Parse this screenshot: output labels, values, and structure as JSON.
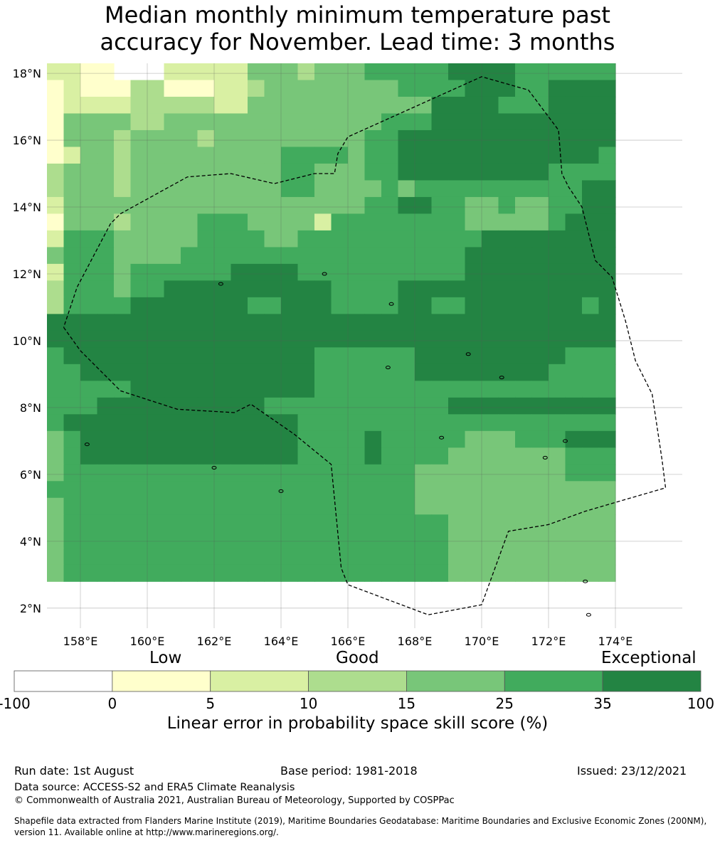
{
  "title_line1": "Median monthly minimum temperature past",
  "title_line2": "accuracy for November. Lead time: 3 months",
  "map": {
    "lon_range": [
      157,
      176
    ],
    "lat_range": [
      1.4,
      18.3
    ],
    "lon_ticks": [
      {
        "value": 158,
        "label": "158°E"
      },
      {
        "value": 160,
        "label": "160°E"
      },
      {
        "value": 162,
        "label": "162°E"
      },
      {
        "value": 164,
        "label": "164°E"
      },
      {
        "value": 166,
        "label": "166°E"
      },
      {
        "value": 168,
        "label": "168°E"
      },
      {
        "value": 170,
        "label": "170°E"
      },
      {
        "value": 172,
        "label": "172°E"
      },
      {
        "value": 174,
        "label": "174°E"
      }
    ],
    "lat_ticks": [
      {
        "value": 18,
        "label": "18°N"
      },
      {
        "value": 16,
        "label": "16°N"
      },
      {
        "value": 14,
        "label": "14°N"
      },
      {
        "value": 12,
        "label": "12°N"
      },
      {
        "value": 10,
        "label": "10°N"
      },
      {
        "value": 8,
        "label": "8°N"
      },
      {
        "value": 6,
        "label": "6°N"
      },
      {
        "value": 4,
        "label": "4°N"
      },
      {
        "value": 2,
        "label": "2°N"
      }
    ],
    "grid_lines": true,
    "eez_boundary": [
      [
        157.5,
        10.4
      ],
      [
        158.0,
        9.7
      ],
      [
        159.2,
        8.5
      ],
      [
        160.9,
        7.95
      ],
      [
        162.6,
        7.85
      ],
      [
        163.1,
        8.1
      ],
      [
        164.4,
        7.2
      ],
      [
        165.5,
        6.3
      ],
      [
        165.8,
        3.2
      ],
      [
        166.0,
        2.7
      ],
      [
        168.4,
        1.8
      ],
      [
        170.0,
        2.1
      ],
      [
        170.8,
        4.3
      ],
      [
        172.0,
        4.5
      ],
      [
        173.1,
        4.9
      ],
      [
        175.5,
        5.6
      ],
      [
        175.4,
        6.4
      ],
      [
        175.1,
        8.4
      ],
      [
        174.6,
        9.4
      ],
      [
        174.3,
        10.6
      ],
      [
        173.9,
        11.9
      ],
      [
        173.4,
        12.4
      ],
      [
        173.0,
        14.0
      ],
      [
        172.6,
        14.6
      ],
      [
        172.4,
        15.0
      ],
      [
        172.3,
        16.3
      ],
      [
        171.4,
        17.5
      ],
      [
        170.0,
        17.9
      ],
      [
        168.0,
        17.0
      ],
      [
        166.0,
        16.1
      ],
      [
        165.7,
        15.6
      ],
      [
        165.6,
        15.0
      ],
      [
        165.0,
        15.0
      ],
      [
        164.6,
        14.9
      ],
      [
        163.8,
        14.7
      ],
      [
        162.5,
        15.0
      ],
      [
        161.2,
        14.9
      ],
      [
        159.2,
        13.8
      ],
      [
        158.9,
        13.5
      ],
      [
        157.9,
        11.6
      ],
      [
        157.5,
        10.4
      ]
    ]
  },
  "chart_data": {
    "type": "heatmap",
    "title": "Median monthly minimum temperature past accuracy for November. Lead time: 3 months",
    "x_label": "",
    "y_label": "",
    "lon_start": 157.0,
    "lat_start": 18.3,
    "cell_size_deg": 0.5,
    "nodata_code": 0,
    "category_codes": {
      "0": "-100 to 0",
      "1": "0 to 5",
      "2": "5 to 10",
      "3": "10 to 15",
      "4": "15 to 25",
      "5": "25 to 35",
      "6": "35 to 100"
    },
    "grid_rows": [
      "2211000222224443444555556666555555",
      "1211133111223444444445555666556666",
      "1222233333224444444444466665556666",
      "1444433444444444444455566666666666",
      "1444344443444444444556666666666666",
      "1244344444444455554556666666666665",
      "3444344444444455444556666666665555",
      "3444344444444455444454555555555566",
      "2444444444444444444556655445445566",
      "1444344445554444255555555444445666",
      "2555444445555445555555555566666666",
      "4555444455555555555555555666666666",
      "2555455555566665555555555666666666",
      "3555455666666666655556666666666666",
      "3555566666665566655556655666666656",
      "6666666666666666666666666666666666",
      "6666666666666666666666666666666666",
      "5666666666666666555555666666666555",
      "5566666666666666555555666666665555",
      "5555566666666666555555555555555555",
      "5556666666666555555555556666666666",
      "5666666666666665555555555555555555",
      "4566666666666665555655555444555666",
      "4566666666666665555655554444444555",
      "4555555555555555555555444444444555",
      "5555555555555555555555444444444444",
      "4555555555555555555555444444444444",
      "4555555555555555555555554444444444",
      "4555555555555555555555554444444444",
      "4555555555555555555555554444444444",
      "4555555555555555555555554444444444"
    ]
  },
  "colorbar": {
    "label_low": "Low",
    "label_good": "Good",
    "label_exceptional": "Exceptional",
    "tick_labels": [
      "-100",
      "0",
      "5",
      "10",
      "15",
      "25",
      "35",
      "100"
    ],
    "colors": [
      "#ffffff",
      "#ffffcc",
      "#d9f0a3",
      "#addd8e",
      "#78c679",
      "#41ab5d",
      "#238443"
    ],
    "title": "Linear error in probability space skill score (%)"
  },
  "footer": {
    "run_date": "Run date: 1st August",
    "base_period": "Base period: 1981-2018",
    "issued": "Issued: 23/12/2021",
    "data_source": "Data source: ACCESS-S2 and ERA5 Climate Reanalysis",
    "copyright": "© Commonwealth of Australia 2021, Australian Bureau of Meteorology, Supported by COSPPac",
    "shapefile_line1": "Shapefile data extracted from Flanders Marine Institute (2019), Maritime Boundaries Geodatabase: Maritime Boundaries and Exclusive Economic Zones (200NM),",
    "shapefile_line2": "version 11. Available online at http://www.marineregions.org/."
  }
}
